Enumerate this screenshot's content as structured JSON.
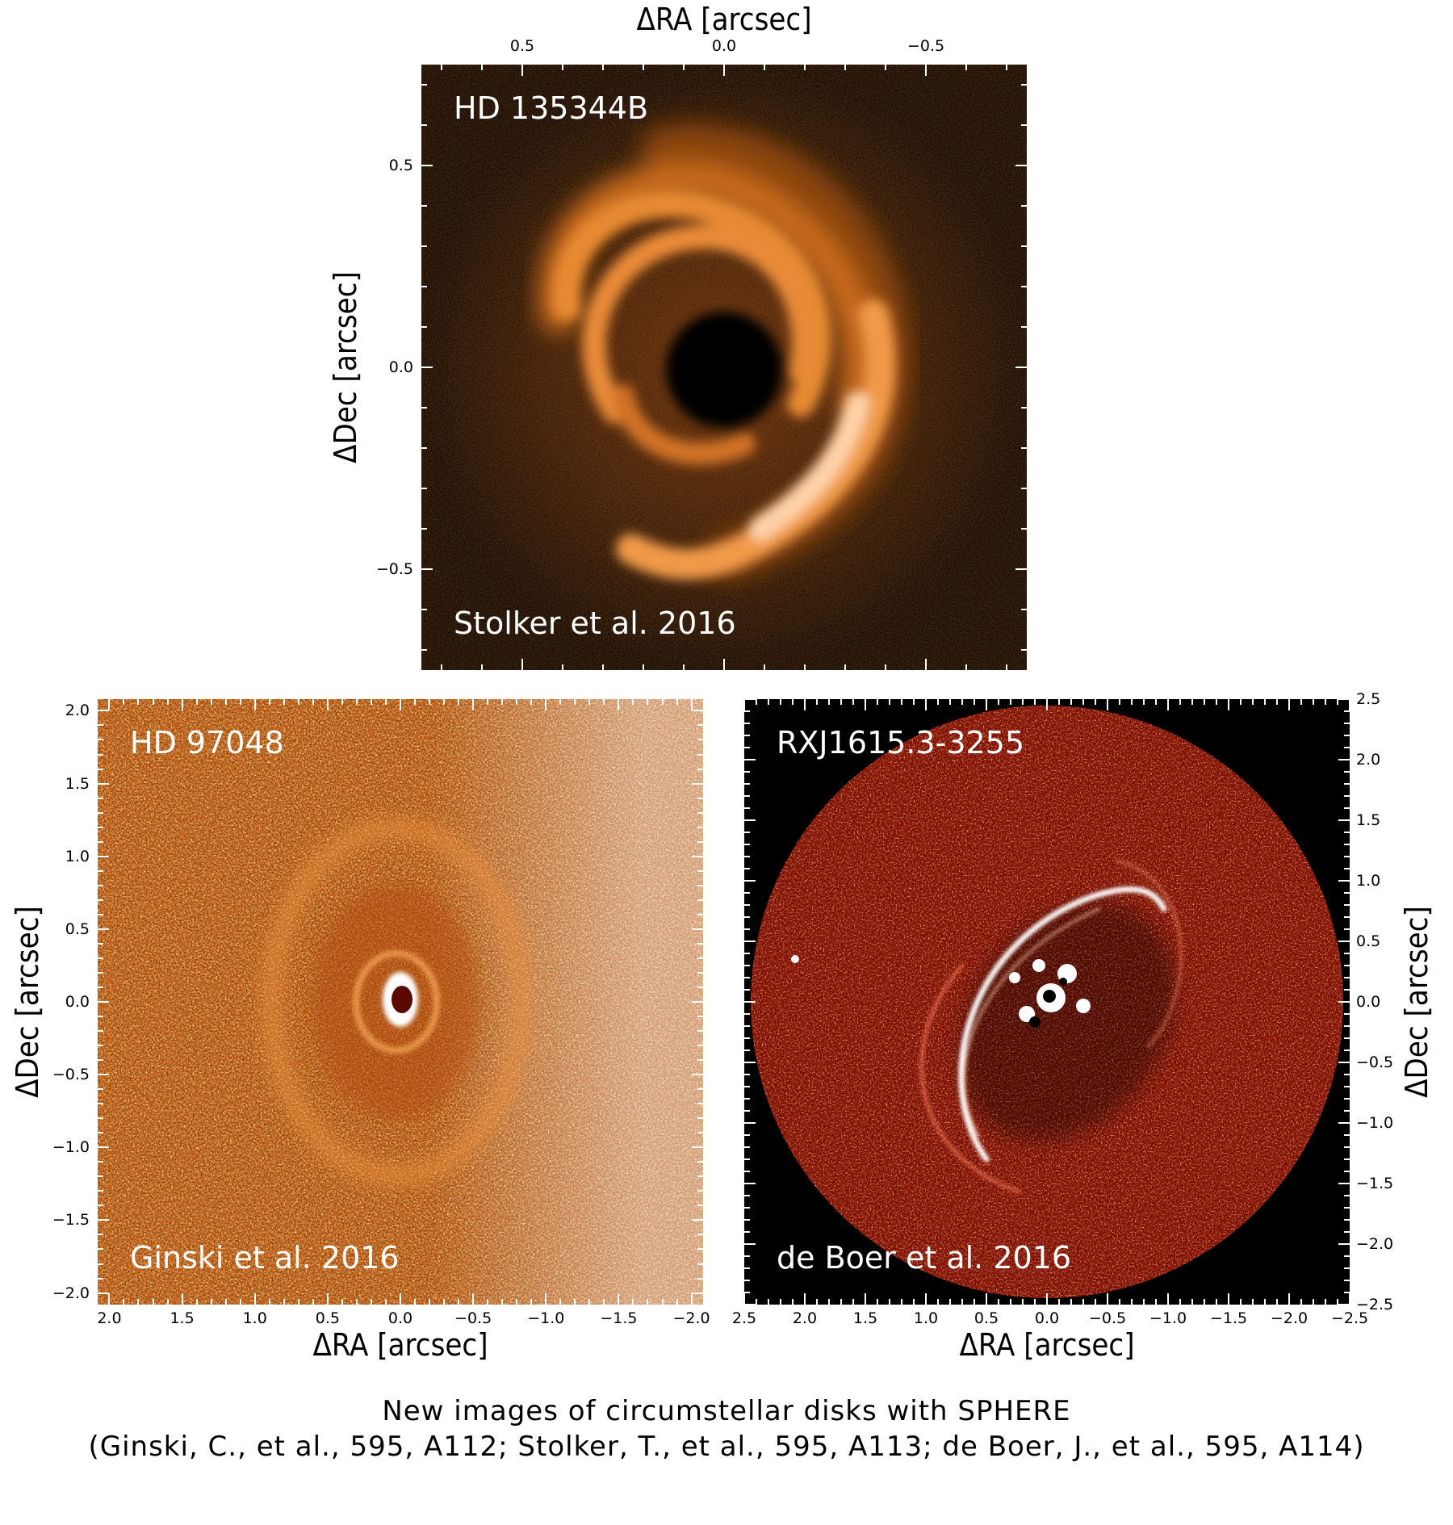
{
  "panels": [
    {
      "key": "top",
      "target": "HD 135344B",
      "credit": "Stolker et al. 2016",
      "xlabel": "ΔRA [arcsec]",
      "ylabel": "ΔDec [arcsec]",
      "xlim": [
        0.75,
        -0.75
      ],
      "ylim": [
        -0.75,
        0.75
      ],
      "xticks": [
        0.5,
        0.0,
        -0.5
      ],
      "yticks": [
        0.5,
        0.0,
        -0.5
      ],
      "minor_step": 0.1,
      "x_axis_side": "top",
      "y_axis_side": "left",
      "colormap": "orange"
    },
    {
      "key": "bl",
      "target": "HD 97048",
      "credit": "Ginski et al. 2016",
      "xlabel": "ΔRA [arcsec]",
      "ylabel": "ΔDec [arcsec]",
      "xlim": [
        2.08,
        -2.08
      ],
      "ylim": [
        -2.08,
        2.08
      ],
      "xticks": [
        2.0,
        1.5,
        1.0,
        0.5,
        0.0,
        -0.5,
        -1.0,
        -1.5,
        -2.0
      ],
      "yticks": [
        2.0,
        1.5,
        1.0,
        0.5,
        0.0,
        -0.5,
        -1.0,
        -1.5,
        -2.0
      ],
      "minor_step": 0.1,
      "x_axis_side": "bottom",
      "y_axis_side": "left",
      "colormap": "orange-white"
    },
    {
      "key": "br",
      "target": "RXJ1615.3-3255",
      "credit": "de Boer et al. 2016",
      "xlabel": "ΔRA [arcsec]",
      "ylabel": "ΔDec [arcsec]",
      "xlim": [
        2.5,
        -2.5
      ],
      "ylim": [
        -2.5,
        2.5
      ],
      "xticks": [
        2.5,
        2.0,
        1.5,
        1.0,
        0.5,
        0.0,
        -0.5,
        -1.0,
        -1.5,
        -2.0,
        -2.5
      ],
      "yticks": [
        2.5,
        2.0,
        1.5,
        1.0,
        0.5,
        0.0,
        -0.5,
        -1.0,
        -1.5,
        -2.0,
        -2.5
      ],
      "minor_step": 0.1,
      "x_axis_side": "bottom",
      "y_axis_side": "right",
      "colormap": "red-white"
    }
  ],
  "caption": {
    "line1": "New images of circumstellar disks with SPHERE",
    "line2": "(Ginski, C., et al., 595, A112; Stolker, T., et al., 595, A113; de Boer, J., et al., 595, A114)"
  }
}
